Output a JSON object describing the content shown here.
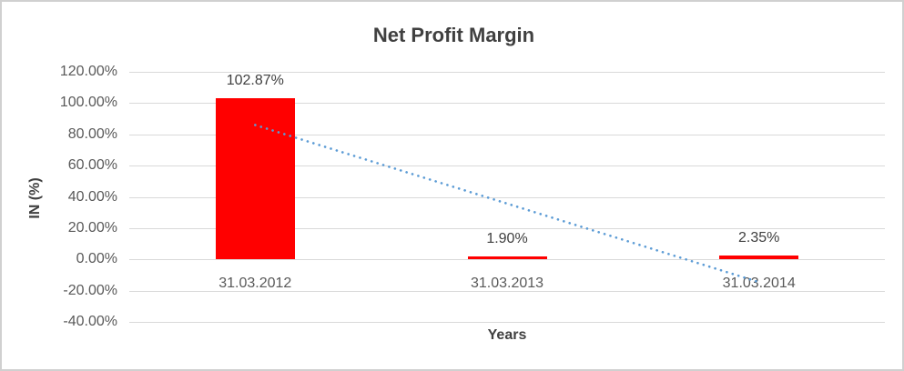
{
  "page": {
    "background": "#FFFFFF",
    "border_color": "#D0D0D0"
  },
  "chart_data": {
    "type": "bar",
    "title": "Net Profit Margin",
    "xlabel": "Years",
    "ylabel": "IN (%)",
    "categories": [
      "31.03.2012",
      "31.03.2013",
      "31.03.2014"
    ],
    "values": [
      102.87,
      1.9,
      2.35
    ],
    "data_labels": [
      "102.87%",
      "1.90%",
      "2.35%"
    ],
    "yticks": [
      {
        "value": 120,
        "label": "120.00%"
      },
      {
        "value": 100,
        "label": "100.00%"
      },
      {
        "value": 80,
        "label": "80.00%"
      },
      {
        "value": 60,
        "label": "60.00%"
      },
      {
        "value": 40,
        "label": "40.00%"
      },
      {
        "value": 20,
        "label": "20.00%"
      },
      {
        "value": 0,
        "label": "0.00%"
      },
      {
        "value": -20,
        "label": "-20.00%"
      },
      {
        "value": -40,
        "label": "-40.00%"
      }
    ],
    "ylim": [
      -40,
      120
    ],
    "grid": true,
    "legend": "none",
    "bar_color": "#FF0000",
    "gridline_color": "#D9D9D9",
    "tick_text_color": "#595959",
    "label_text_color": "#404040",
    "trendline": {
      "type": "linear",
      "style": "dotted",
      "color": "#5B9BD5",
      "start_category_index": 0,
      "end_category_index": 2,
      "start_value": 85.97,
      "end_value": -14.55
    }
  }
}
